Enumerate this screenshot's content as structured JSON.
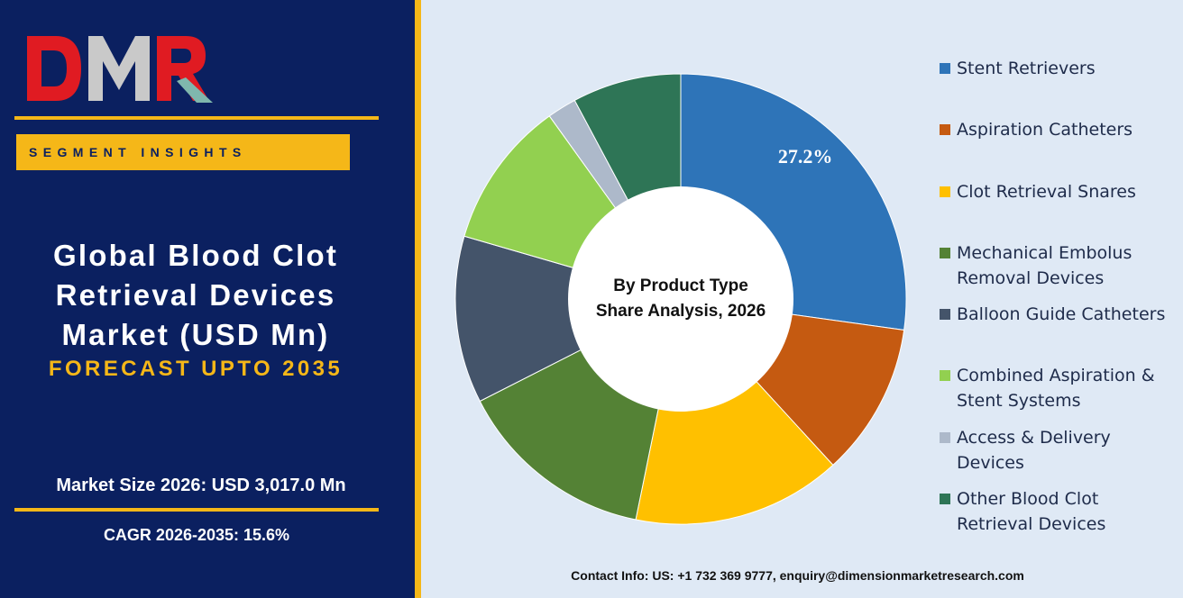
{
  "brand": {
    "logo_text": "DMR",
    "logo_colors": {
      "d": "#e01b22",
      "m": "#c9c9c9",
      "r": "#e01b22",
      "arrow": "#7fb7ad"
    }
  },
  "left_panel": {
    "badge": "SEGMENT INSIGHTS",
    "title_lines": [
      "Global Blood Clot",
      "Retrieval Devices",
      "Market (USD Mn)"
    ],
    "forecast": "FORECAST UPTO 2035",
    "market_size": "Market Size 2026: USD 3,017.0 Mn",
    "cagr": "CAGR 2026-2035: 15.6%"
  },
  "colors": {
    "navy": "#0b2060",
    "gold": "#f5b718",
    "panel_bg": "#dfe9f5"
  },
  "chart_data": {
    "type": "pie",
    "style": "donut",
    "center_label_lines": [
      "By Product Type",
      "Share Analysis, 2026"
    ],
    "categories": [
      "Stent Retrievers",
      "Aspiration Catheters",
      "Clot Retrieval Snares",
      "Mechanical Embolus Removal Devices",
      "Balloon Guide Catheters",
      "Combined Aspiration & Stent Systems",
      "Access & Delivery Devices",
      "Other Blood Clot Retrieval Devices"
    ],
    "legend_lines": [
      [
        "Stent Retrievers"
      ],
      [
        "Aspiration Catheters"
      ],
      [
        "Clot Retrieval Snares"
      ],
      [
        "Mechanical Embolus",
        "Removal Devices"
      ],
      [
        "Balloon Guide Catheters"
      ],
      [
        "Combined Aspiration &",
        "Stent Systems"
      ],
      [
        "Access & Delivery",
        "Devices"
      ],
      [
        "Other Blood Clot",
        "Retrieval Devices"
      ]
    ],
    "values": [
      27.2,
      11.0,
      15.0,
      14.3,
      12.0,
      10.6,
      2.1,
      7.8
    ],
    "data_labels": [
      "27.2%",
      "",
      "",
      "",
      "",
      "",
      "",
      ""
    ],
    "colors": [
      "#2e74b8",
      "#c55a11",
      "#ffc000",
      "#548235",
      "#44546a",
      "#92d050",
      "#adb9ca",
      "#2e7556"
    ],
    "legend_position": "right"
  },
  "contact": "Contact Info: US: +1 732 369 9777, enquiry@dimensionmarketresearch.com"
}
